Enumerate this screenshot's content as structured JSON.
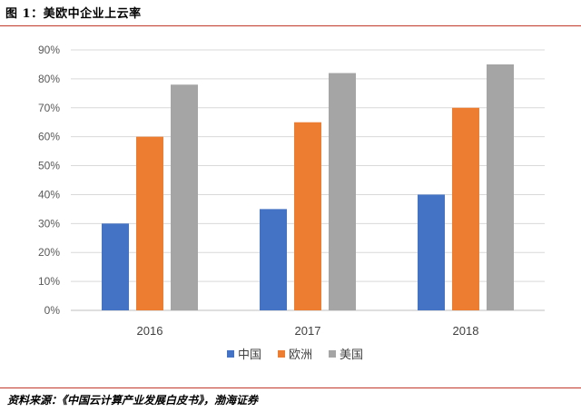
{
  "figure": {
    "title": "图 1：美欧中企业上云率",
    "source": "资料来源：《中国云计算产业发展白皮书》，渤海证券"
  },
  "chart_data": {
    "type": "bar",
    "categories": [
      "2016",
      "2017",
      "2018"
    ],
    "series": [
      {
        "name": "中国",
        "color": "#4472c4",
        "values": [
          30,
          35,
          40
        ]
      },
      {
        "name": "欧洲",
        "color": "#ed7d31",
        "values": [
          60,
          65,
          70
        ]
      },
      {
        "name": "美国",
        "color": "#a5a5a5",
        "values": [
          78,
          82,
          85
        ]
      }
    ],
    "ylim": [
      0,
      90
    ],
    "yticks": [
      "0%",
      "10%",
      "20%",
      "30%",
      "40%",
      "50%",
      "60%",
      "70%",
      "80%",
      "90%"
    ],
    "grid": true,
    "legend": "bottom",
    "gridline_color": "#d9d9d9"
  }
}
